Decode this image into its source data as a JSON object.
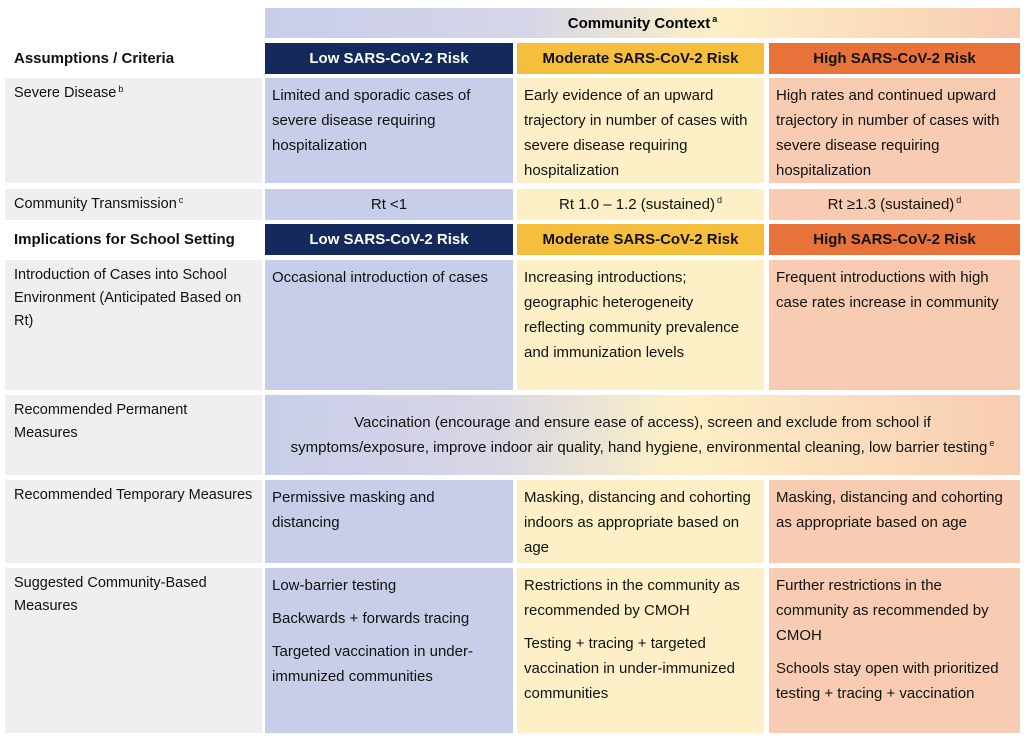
{
  "context": {
    "title": "Community Context",
    "note": "a"
  },
  "sections": [
    {
      "title": "Assumptions / Criteria",
      "levels": [
        "Low SARS-CoV-2 Risk",
        "Moderate SARS-CoV-2 Risk",
        "High SARS-CoV-2 Risk"
      ],
      "rows": [
        {
          "label": "Severe Disease",
          "note": "b",
          "cells": [
            [
              "Limited and sporadic cases of severe disease requiring hospitalization"
            ],
            [
              "Early evidence of an upward trajectory in number of cases with severe disease requiring hospitalization"
            ],
            [
              "High rates and continued upward trajectory in number of cases with severe disease requiring hospitalization"
            ]
          ]
        },
        {
          "label": "Community Transmission",
          "note": "c",
          "center": true,
          "cells": [
            {
              "text": "Rt <1"
            },
            {
              "text": "Rt 1.0 – 1.2 (sustained)",
              "note": "d"
            },
            {
              "text": "Rt ≥1.3 (sustained)",
              "note": "d"
            }
          ]
        }
      ]
    },
    {
      "title": "Implications for School Setting",
      "levels": [
        "Low SARS-CoV-2 Risk",
        "Moderate SARS-CoV-2 Risk",
        "High SARS-CoV-2 Risk"
      ],
      "rows": [
        {
          "label": "Introduction of Cases into School Environment (Anticipated Based on Rt)",
          "cells": [
            [
              "Occasional introduction of cases"
            ],
            [
              "Increasing introductions; geographic heterogeneity reflecting community prevalence and immunization levels"
            ],
            [
              "Frequent introductions with high case rates increase in community"
            ]
          ]
        },
        {
          "label": "Recommended Permanent Measures",
          "center": true,
          "cells": [
            {
              "text": "Vaccination (encourage and ensure ease of access), screen and exclude from school if symptoms/exposure, improve indoor air quality, hand hygiene, environmental cleaning, low barrier testing",
              "note": "e"
            }
          ]
        },
        {
          "label": "Recommended Temporary Measures",
          "cells": [
            [
              "Permissive masking and distancing"
            ],
            [
              "Masking, distancing and cohorting indoors as appropriate based on age"
            ],
            [
              "Masking, distancing and cohorting as appropriate based on age"
            ]
          ]
        },
        {
          "label": "Suggested Community-Based Measures",
          "cells": [
            [
              "Low-barrier testing",
              "Backwards + forwards tracing",
              "Targeted vaccination in under-immunized communities"
            ],
            [
              "Restrictions in the community as recommended by CMOH",
              "Testing + tracing + targeted vaccination in under-immunized communities"
            ],
            [
              "Further restrictions in the community as recommended by CMOH",
              "Schools stay open with prioritized testing + tracing + vaccination"
            ]
          ]
        }
      ]
    }
  ]
}
